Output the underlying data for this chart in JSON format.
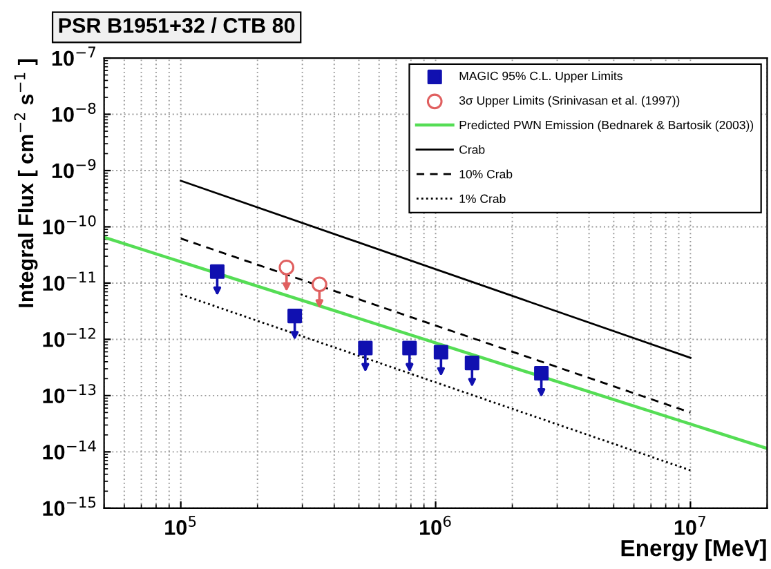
{
  "chart_data": {
    "type": "scatter",
    "title": "PSR B1951+32 / CTB 80",
    "xlabel": "Energy [MeV]",
    "ylabel": "Integral Flux [ cm$^{−2}$ s$^{−1}$ ]",
    "log": "xy",
    "xlim": [
      50000,
      20000000
    ],
    "ylim": [
      1e-15,
      1e-07
    ],
    "xticks": [
      {
        "value": 100000,
        "label": "10$^{5}$"
      },
      {
        "value": 1000000,
        "label": "10$^{6}$"
      },
      {
        "value": 10000000,
        "label": "10$^{7}$"
      }
    ],
    "yticks": [
      {
        "value": 1e-15,
        "label": "10$^{−15}$"
      },
      {
        "value": 1e-14,
        "label": "10$^{−14}$"
      },
      {
        "value": 1e-13,
        "label": "10$^{−13}$"
      },
      {
        "value": 1e-12,
        "label": "10$^{−12}$"
      },
      {
        "value": 1e-11,
        "label": "10$^{−11}$"
      },
      {
        "value": 1e-10,
        "label": "10$^{−10}$"
      },
      {
        "value": 1e-09,
        "label": "10$^{−9}$"
      },
      {
        "value": 1e-08,
        "label": "10$^{−8}$"
      },
      {
        "value": 1e-07,
        "label": "10$^{−7}$"
      }
    ],
    "grid": true,
    "legend": "top right",
    "series": [
      {
        "name": "MAGIC 95% C.L. Upper Limits",
        "marker": "square",
        "color": "#1010b0",
        "x": [
          139000,
          280000,
          530000,
          790000,
          1050000,
          1390000,
          2600000
        ],
        "values": [
          1.6e-11,
          2.6e-12,
          7e-13,
          7e-13,
          5.9e-13,
          3.8e-13,
          2.5e-13
        ]
      },
      {
        "name": "3σ Upper Limits (Srinivasan et al. (1997))",
        "marker": "circle",
        "color": "#e06060",
        "x": [
          260000,
          350000
        ],
        "values": [
          1.9e-11,
          9.5e-12
        ]
      },
      {
        "name": "Predicted PWN Emission (Bednarek & Bartosik (2003))",
        "type": "line",
        "line_style": "solid",
        "color": "#55dd55",
        "x": [
          50000,
          20000000
        ],
        "values": [
          6.5e-11,
          1.15e-14
        ]
      },
      {
        "name": "Crab",
        "type": "line",
        "line_style": "solid",
        "color": "#000000",
        "x": [
          100000,
          10000000
        ],
        "values": [
          6.6e-10,
          4.7e-13
        ]
      },
      {
        "name": "10% Crab",
        "type": "line",
        "line_style": "dashed",
        "color": "#000000",
        "x": [
          100000,
          10000000
        ],
        "values": [
          6.2e-11,
          5e-14
        ]
      },
      {
        "name": "1% Crab",
        "type": "line",
        "line_style": "dotted",
        "color": "#000000",
        "x": [
          100000,
          10000000
        ],
        "values": [
          6.3e-12,
          4.7e-15
        ]
      }
    ]
  }
}
